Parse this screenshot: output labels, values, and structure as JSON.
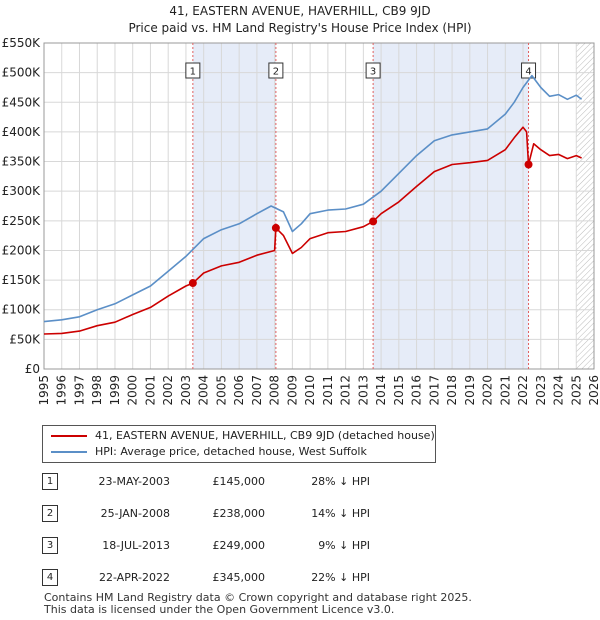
{
  "title_line1": "41, EASTERN AVENUE, HAVERHILL, CB9 9JD",
  "title_line2": "Price paid vs. HM Land Registry's House Price Index (HPI)",
  "legend": {
    "property_label": "41, EASTERN AVENUE, HAVERHILL, CB9 9JD (detached house)",
    "hpi_label": "HPI: Average price, detached house, West Suffolk"
  },
  "sales": [
    {
      "num": "1",
      "date": "23-MAY-2003",
      "price": "£145,000",
      "diff": "28% ↓ HPI"
    },
    {
      "num": "2",
      "date": "25-JAN-2008",
      "price": "£238,000",
      "diff": "14% ↓ HPI"
    },
    {
      "num": "3",
      "date": "18-JUL-2013",
      "price": "£249,000",
      "diff": "9% ↓ HPI"
    },
    {
      "num": "4",
      "date": "22-APR-2022",
      "price": "£345,000",
      "diff": "22% ↓ HPI"
    }
  ],
  "footer": {
    "line1": "Contains HM Land Registry data © Crown copyright and database right 2025.",
    "line2": "This data is licensed under the Open Government Licence v3.0."
  },
  "colors": {
    "property": "#cc0000",
    "hpi": "#5b8fc7",
    "band": "#e6ecf8",
    "grid": "#d8d8d8",
    "marker_line": "#e06060"
  },
  "chart_data": {
    "type": "line",
    "xlim": [
      1995,
      2026
    ],
    "ylim": [
      0,
      550000
    ],
    "x_ticks": [
      "1995",
      "1996",
      "1997",
      "1998",
      "1999",
      "2000",
      "2001",
      "2002",
      "2003",
      "2004",
      "2005",
      "2006",
      "2007",
      "2008",
      "2009",
      "2010",
      "2011",
      "2012",
      "2013",
      "2014",
      "2015",
      "2016",
      "2017",
      "2018",
      "2019",
      "2020",
      "2021",
      "2022",
      "2023",
      "2024",
      "2025",
      "2026"
    ],
    "y_ticks": [
      {
        "value": 0,
        "label": "£0"
      },
      {
        "value": 50000,
        "label": "£50K"
      },
      {
        "value": 100000,
        "label": "£100K"
      },
      {
        "value": 150000,
        "label": "£150K"
      },
      {
        "value": 200000,
        "label": "£200K"
      },
      {
        "value": 250000,
        "label": "£250K"
      },
      {
        "value": 300000,
        "label": "£300K"
      },
      {
        "value": 350000,
        "label": "£350K"
      },
      {
        "value": 400000,
        "label": "£400K"
      },
      {
        "value": 450000,
        "label": "£450K"
      },
      {
        "value": 500000,
        "label": "£500K"
      },
      {
        "value": 550000,
        "label": "£550K"
      }
    ],
    "shaded_bands": [
      [
        2003.39,
        2008.07
      ],
      [
        2013.55,
        2022.31
      ]
    ],
    "hatched_after": 2025.0,
    "sale_markers": [
      {
        "label": "1",
        "x": 2003.39,
        "y": 145000
      },
      {
        "label": "2",
        "x": 2008.07,
        "y": 238000
      },
      {
        "label": "3",
        "x": 2013.55,
        "y": 249000
      },
      {
        "label": "4",
        "x": 2022.31,
        "y": 345000
      }
    ],
    "series": [
      {
        "name": "41, EASTERN AVENUE, HAVERHILL, CB9 9JD (detached house)",
        "x": [
          1995.0,
          1996.0,
          1997.0,
          1998.0,
          1999.0,
          2000.0,
          2001.0,
          2002.0,
          2003.0,
          2003.39,
          2004.0,
          2005.0,
          2006.0,
          2007.0,
          2008.0,
          2008.07,
          2008.5,
          2009.0,
          2009.5,
          2010.0,
          2011.0,
          2012.0,
          2013.0,
          2013.55,
          2014.0,
          2015.0,
          2016.0,
          2017.0,
          2018.0,
          2019.0,
          2020.0,
          2021.0,
          2021.5,
          2022.0,
          2022.2,
          2022.31,
          2022.6,
          2023.0,
          2023.5,
          2024.0,
          2024.5,
          2025.0,
          2025.3
        ],
        "values": [
          59000,
          60000,
          64000,
          73000,
          79000,
          92000,
          104000,
          123000,
          140000,
          145000,
          162000,
          174000,
          180000,
          192000,
          200000,
          238000,
          225000,
          195000,
          205000,
          220000,
          230000,
          232000,
          240000,
          249000,
          262000,
          282000,
          308000,
          333000,
          345000,
          348000,
          352000,
          370000,
          390000,
          408000,
          400000,
          345000,
          380000,
          370000,
          360000,
          362000,
          355000,
          360000,
          356000
        ]
      },
      {
        "name": "HPI: Average price, detached house, West Suffolk",
        "x": [
          1995.0,
          1996.0,
          1997.0,
          1998.0,
          1999.0,
          2000.0,
          2001.0,
          2002.0,
          2003.0,
          2004.0,
          2005.0,
          2006.0,
          2007.0,
          2007.8,
          2008.5,
          2009.0,
          2009.5,
          2010.0,
          2011.0,
          2012.0,
          2013.0,
          2014.0,
          2015.0,
          2016.0,
          2017.0,
          2018.0,
          2019.0,
          2020.0,
          2021.0,
          2021.5,
          2022.0,
          2022.5,
          2023.0,
          2023.5,
          2024.0,
          2024.5,
          2025.0,
          2025.3
        ],
        "values": [
          80000,
          83000,
          88000,
          100000,
          110000,
          125000,
          140000,
          165000,
          190000,
          220000,
          235000,
          245000,
          262000,
          275000,
          265000,
          232000,
          245000,
          262000,
          268000,
          270000,
          278000,
          300000,
          330000,
          360000,
          385000,
          395000,
          400000,
          405000,
          430000,
          450000,
          475000,
          495000,
          475000,
          460000,
          463000,
          455000,
          462000,
          455000
        ]
      }
    ]
  }
}
